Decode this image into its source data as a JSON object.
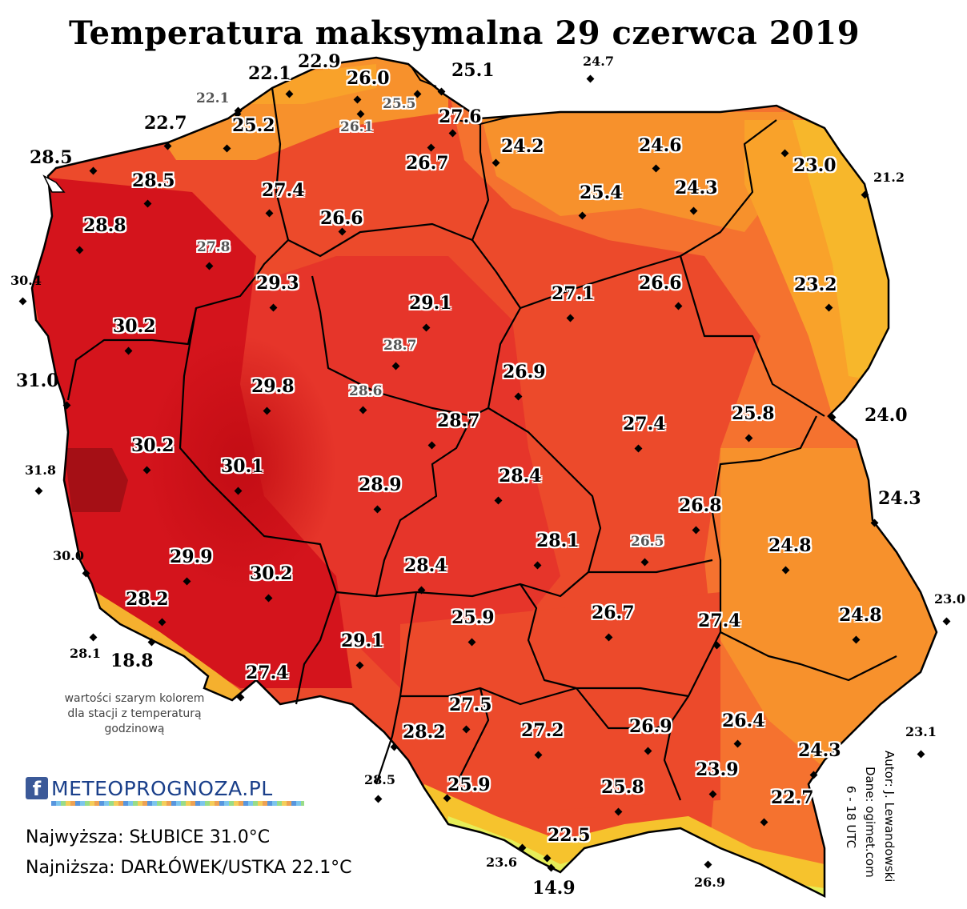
{
  "title": "Temperatura maksymalna 29 czerwca 2019",
  "note": "wartości szarym kolorem dla stacji z temperaturą godzinową",
  "logo": {
    "icon": "f",
    "text": "METEOPROGNOZA.PL"
  },
  "summary": {
    "highest": "Najwyższa: SŁUBICE 31.0°C",
    "lowest": "Najniższa: DARŁÓWEK/USTKA 22.1°C"
  },
  "credits": [
    "Autor: J. Lewandowski",
    "Dane: ogimet.com",
    "6 - 18 UTC"
  ],
  "colors": {
    "hottest": "#a50f15",
    "hot": "#d4141c",
    "warm": "#ec4a2b",
    "mild": "#f5722f",
    "cool": "#f7912c",
    "cooler": "#f9a22a",
    "cold": "#f6c32d",
    "mountain": "#e6ee58"
  },
  "stations": [
    {
      "value": "22.9",
      "style": "in"
    },
    {
      "value": "22.1",
      "style": "in"
    },
    {
      "value": "26.0",
      "style": "in"
    },
    {
      "value": "25.1",
      "style": "out"
    },
    {
      "value": "24.7",
      "style": "sm"
    },
    {
      "value": "22.1",
      "style": "grey"
    },
    {
      "value": "25.5",
      "style": "grey"
    },
    {
      "value": "27.6",
      "style": "in"
    },
    {
      "value": "26.1",
      "style": "grey"
    },
    {
      "value": "22.7",
      "style": "out"
    },
    {
      "value": "25.2",
      "style": "in"
    },
    {
      "value": "26.7",
      "style": "in"
    },
    {
      "value": "24.2",
      "style": "in"
    },
    {
      "value": "24.6",
      "style": "in"
    },
    {
      "value": "23.0",
      "style": "in"
    },
    {
      "value": "28.5",
      "style": "out"
    },
    {
      "value": "21.2",
      "style": "sm"
    },
    {
      "value": "28.5",
      "style": "in"
    },
    {
      "value": "27.4",
      "style": "in"
    },
    {
      "value": "24.3",
      "style": "in"
    },
    {
      "value": "25.4",
      "style": "in"
    },
    {
      "value": "26.6",
      "style": "in"
    },
    {
      "value": "28.8",
      "style": "in"
    },
    {
      "value": "27.8",
      "style": "grey"
    },
    {
      "value": "30.4",
      "style": "sm"
    },
    {
      "value": "29.3",
      "style": "in"
    },
    {
      "value": "29.1",
      "style": "in"
    },
    {
      "value": "27.1",
      "style": "in"
    },
    {
      "value": "26.6",
      "style": "in"
    },
    {
      "value": "23.2",
      "style": "in"
    },
    {
      "value": "30.2",
      "style": "in"
    },
    {
      "value": "28.7",
      "style": "grey"
    },
    {
      "value": "31.0",
      "style": "out"
    },
    {
      "value": "26.9",
      "style": "in"
    },
    {
      "value": "29.8",
      "style": "in"
    },
    {
      "value": "28.6",
      "style": "grey"
    },
    {
      "value": "24.0",
      "style": "out"
    },
    {
      "value": "25.8",
      "style": "in"
    },
    {
      "value": "28.7",
      "style": "in"
    },
    {
      "value": "27.4",
      "style": "in"
    },
    {
      "value": "30.2",
      "style": "in"
    },
    {
      "value": "31.8",
      "style": "sm"
    },
    {
      "value": "30.1",
      "style": "in"
    },
    {
      "value": "28.4",
      "style": "in"
    },
    {
      "value": "28.9",
      "style": "in"
    },
    {
      "value": "24.3",
      "style": "out"
    },
    {
      "value": "26.8",
      "style": "in"
    },
    {
      "value": "26.5",
      "style": "grey"
    },
    {
      "value": "30.0",
      "style": "sm"
    },
    {
      "value": "29.9",
      "style": "in"
    },
    {
      "value": "24.8",
      "style": "in"
    },
    {
      "value": "28.1",
      "style": "in"
    },
    {
      "value": "28.4",
      "style": "in"
    },
    {
      "value": "30.2",
      "style": "in"
    },
    {
      "value": "28.2",
      "style": "in"
    },
    {
      "value": "23.0",
      "style": "sm"
    },
    {
      "value": "26.7",
      "style": "in"
    },
    {
      "value": "24.8",
      "style": "in"
    },
    {
      "value": "27.4",
      "style": "in"
    },
    {
      "value": "25.9",
      "style": "in"
    },
    {
      "value": "28.1",
      "style": "sm"
    },
    {
      "value": "18.8",
      "style": "out"
    },
    {
      "value": "29.1",
      "style": "in"
    },
    {
      "value": "27.4",
      "style": "in"
    },
    {
      "value": "27.5",
      "style": "in"
    },
    {
      "value": "26.4",
      "style": "in"
    },
    {
      "value": "23.1",
      "style": "sm"
    },
    {
      "value": "28.2",
      "style": "in"
    },
    {
      "value": "27.2",
      "style": "in"
    },
    {
      "value": "26.9",
      "style": "in"
    },
    {
      "value": "24.3",
      "style": "in"
    },
    {
      "value": "23.9",
      "style": "in"
    },
    {
      "value": "28.5",
      "style": "sm"
    },
    {
      "value": "25.9",
      "style": "in"
    },
    {
      "value": "25.8",
      "style": "in"
    },
    {
      "value": "22.7",
      "style": "in"
    },
    {
      "value": "22.5",
      "style": "in"
    },
    {
      "value": "23.6",
      "style": "sm"
    },
    {
      "value": "26.9",
      "style": "sm"
    },
    {
      "value": "14.9",
      "style": "out"
    }
  ]
}
